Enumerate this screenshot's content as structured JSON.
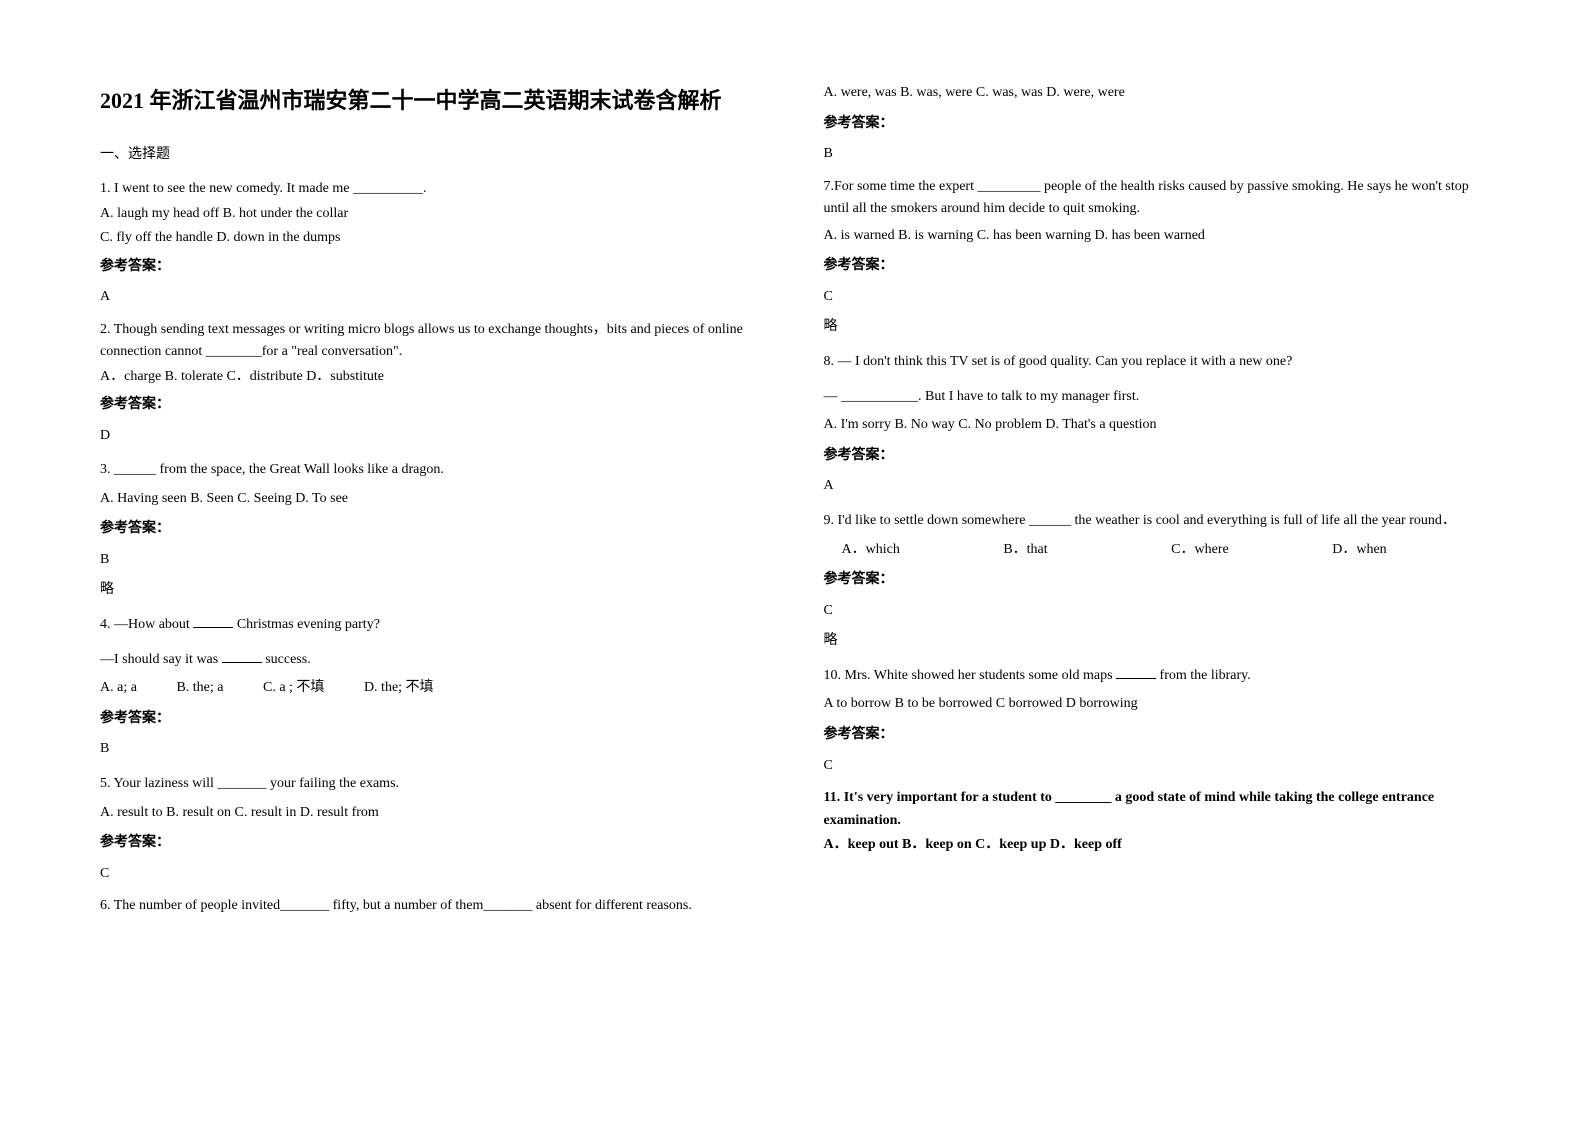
{
  "title": "2021 年浙江省温州市瑞安第二十一中学高二英语期末试卷含解析",
  "section1": "一、选择题",
  "left": {
    "q1": {
      "text": "1. I went to see the new comedy. It made me __________.",
      "opts": [
        "  A. laugh my head off      B. hot under the collar",
        "  C. fly off the handle      D. down in the dumps"
      ],
      "label": "参考答案：",
      "ans": "A"
    },
    "q2": {
      "text": "2. Though sending text messages or writing micro blogs allows us to exchange thoughts，bits and pieces of online connection cannot ________for a \"real conversation\".",
      "opts": "    A．charge       B. tolerate       C．distribute      D．substitute",
      "label": "参考答案：",
      "ans": "D"
    },
    "q3": {
      "text": "3. ______ from the space, the Great Wall looks like a dragon.",
      "opts": "   A. Having seen   B. Seen      C. Seeing      D. To see",
      "label": "参考答案：",
      "ans": "B",
      "skip": "略"
    },
    "q4": {
      "text_a": "4. —How about ",
      "text_b": " Christmas evening party?",
      "text2_a": "—I should say it was ",
      "text2_b": " success.",
      "opts": [
        "A. a; a",
        "B. the; a",
        "C. a ; 不填",
        "D. the; 不填"
      ],
      "label": "参考答案：",
      "ans": "B"
    },
    "q5": {
      "text": "5.    Your laziness will _______ your failing the exams.",
      "opts": "     A. result to     B. result on       C. result in    D. result from",
      "label": "参考答案：",
      "ans": "C"
    },
    "q6": {
      "text": "6. The number of people invited_______ fifty, but a number of them_______ absent for different reasons."
    }
  },
  "right": {
    "q6": {
      "opts": "  A. were, was  B. was, were            C. was, was               D. were, were",
      "label": "参考答案：",
      "ans": "B"
    },
    "q7": {
      "text": "7.For some time the expert _________ people of the health risks caused by                  passive smoking. He says he won't stop until all the smokers around him decide to quit smoking.",
      "opts": "      A. is warned       B. is warning    C. has been warning D. has been warned",
      "label": "参考答案：",
      "ans": "C",
      "skip": "略"
    },
    "q8": {
      "text": " 8.  — I don't think this TV set is of good quality. Can you replace it with a new one?",
      "text2": "   — ___________. But I have to talk to my manager first.",
      "opts": "   A. I'm sorry    B. No way     C. No problem     D. That's a question",
      "label": "参考答案：",
      "ans": "A"
    },
    "q9": {
      "text": "9. I'd like to settle down somewhere ______ the weather is cool and everything is full of life all the year round．",
      "opts": [
        "A．which",
        "B．that",
        "C．where",
        "D．when"
      ],
      "label": "参考答案：",
      "ans": "C",
      "skip": "略"
    },
    "q10": {
      "text_a": "10. Mrs. White showed her students some old maps ",
      "text_b": " from the library.",
      "opts": "A to borrow      B to be borrowed       C borrowed       D borrowing",
      "label": "参考答案：",
      "ans": "C"
    },
    "q11": {
      "text": "11. It's very important for a student to ________ a good state of mind while taking the college entrance examination.",
      "opts": "       A．keep out   B．keep on  C．keep up   D．keep off"
    }
  }
}
